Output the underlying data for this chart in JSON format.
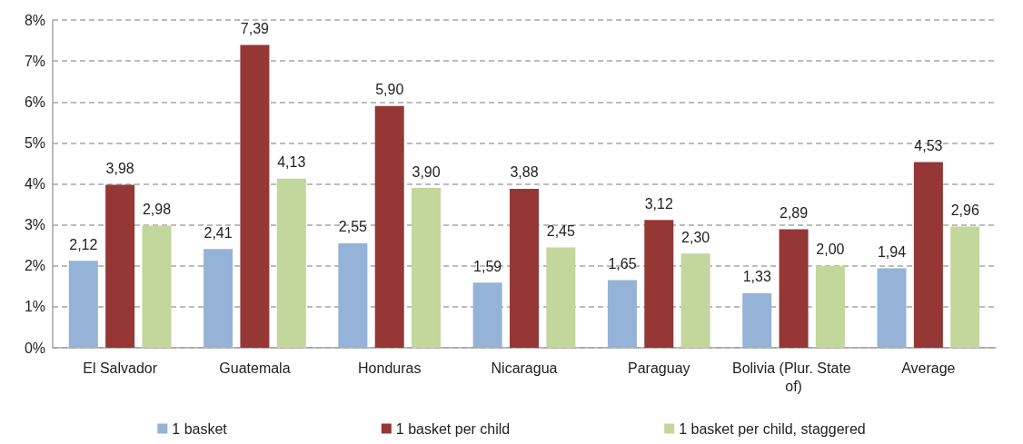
{
  "chart_data": {
    "type": "bar",
    "categories": [
      "El Salvador",
      "Guatemala",
      "Honduras",
      "Nicaragua",
      "Paraguay",
      "Bolivia (Plur. State of)",
      "Average"
    ],
    "series": [
      {
        "name": "1 basket",
        "color": "#95b3d7",
        "values": [
          2.12,
          2.41,
          2.55,
          1.59,
          1.65,
          1.33,
          1.94
        ],
        "value_labels": [
          "2,12",
          "2,41",
          "2,55",
          "1,59",
          "1,65",
          "1,33",
          "1,94"
        ]
      },
      {
        "name": "1 basket per child",
        "color": "#953735",
        "values": [
          3.98,
          7.39,
          5.9,
          3.88,
          3.12,
          2.89,
          4.53
        ],
        "value_labels": [
          "3,98",
          "7,39",
          "5,90",
          "3,88",
          "3,12",
          "2,89",
          "4,53"
        ]
      },
      {
        "name": "1 basket per child, staggered",
        "color": "#c3d69b",
        "values": [
          2.98,
          4.13,
          3.9,
          2.45,
          2.3,
          2.0,
          2.96
        ],
        "value_labels": [
          "2,98",
          "4,13",
          "3,90",
          "2,45",
          "2,30",
          "2,00",
          "2,96"
        ]
      }
    ],
    "ylim": [
      0,
      8
    ],
    "yticks": [
      {
        "value": 0,
        "label": "0%"
      },
      {
        "value": 1,
        "label": "1%"
      },
      {
        "value": 2,
        "label": "2%"
      },
      {
        "value": 3,
        "label": "3%"
      },
      {
        "value": 4,
        "label": "4%"
      },
      {
        "value": 5,
        "label": "5%"
      },
      {
        "value": 6,
        "label": "6%"
      },
      {
        "value": 7,
        "label": "7%"
      },
      {
        "value": 8,
        "label": "8%"
      }
    ],
    "grid": "y",
    "legend": "bottom"
  }
}
